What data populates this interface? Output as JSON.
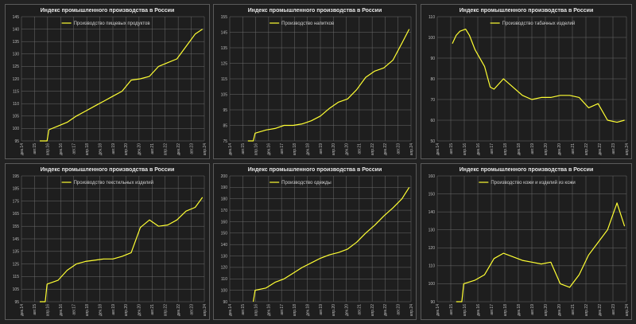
{
  "chart_data": [
    {
      "type": "line",
      "title": "Индекс промышленного производства в России",
      "legend": "Производство пищевых продуктов",
      "legend_position": "top-left",
      "grid": true,
      "color": "#ffff33",
      "ylim": [
        95,
        145
      ],
      "yticks": [
        95,
        100,
        105,
        110,
        115,
        120,
        125,
        130,
        135,
        140,
        145
      ],
      "xticks": [
        "дек.14",
        "авг.15",
        "апр.16",
        "дек.16",
        "авг.17",
        "апр.18",
        "дек.18",
        "авг.19",
        "апр.20",
        "дек.20",
        "авг.21",
        "апр.22",
        "дек.22",
        "авг.23",
        "апр.24"
      ],
      "points": [
        [
          0.1,
          95
        ],
        [
          0.14,
          95
        ],
        [
          0.15,
          99.5
        ],
        [
          0.2,
          101
        ],
        [
          0.25,
          102.5
        ],
        [
          0.3,
          105
        ],
        [
          0.35,
          107
        ],
        [
          0.4,
          109
        ],
        [
          0.45,
          111
        ],
        [
          0.5,
          113
        ],
        [
          0.55,
          115
        ],
        [
          0.6,
          119.5
        ],
        [
          0.65,
          120
        ],
        [
          0.7,
          121
        ],
        [
          0.75,
          125
        ],
        [
          0.8,
          126.5
        ],
        [
          0.85,
          128
        ],
        [
          0.9,
          133
        ],
        [
          0.95,
          138
        ],
        [
          0.99,
          140
        ]
      ]
    },
    {
      "type": "line",
      "title": "Индекс промышленного производства в России",
      "legend": "Производство напитков",
      "legend_position": "top-left",
      "grid": true,
      "color": "#ffff33",
      "ylim": [
        75,
        155
      ],
      "yticks": [
        75,
        85,
        95,
        105,
        115,
        125,
        135,
        145,
        155
      ],
      "xticks": [
        "дек.14",
        "авг.15",
        "апр.16",
        "дек.16",
        "авг.17",
        "апр.18",
        "дек.18",
        "авг.19",
        "апр.20",
        "дек.20",
        "авг.21",
        "апр.22",
        "дек.22",
        "авг.23",
        "апр.24"
      ],
      "points": [
        [
          0.1,
          75
        ],
        [
          0.13,
          75
        ],
        [
          0.14,
          80
        ],
        [
          0.2,
          82
        ],
        [
          0.25,
          83
        ],
        [
          0.3,
          85
        ],
        [
          0.35,
          85
        ],
        [
          0.4,
          86
        ],
        [
          0.45,
          88
        ],
        [
          0.5,
          91
        ],
        [
          0.55,
          96
        ],
        [
          0.6,
          100
        ],
        [
          0.65,
          102
        ],
        [
          0.7,
          108
        ],
        [
          0.75,
          116
        ],
        [
          0.8,
          120
        ],
        [
          0.85,
          122
        ],
        [
          0.9,
          127
        ],
        [
          0.95,
          138
        ],
        [
          0.99,
          147
        ]
      ]
    },
    {
      "type": "line",
      "title": "Индекс промышленного производства в России",
      "legend": "Производство табачных изделий",
      "legend_position": "top-right",
      "grid": true,
      "color": "#ffff33",
      "ylim": [
        50,
        110
      ],
      "yticks": [
        50,
        60,
        70,
        80,
        90,
        100,
        110
      ],
      "xticks": [
        "дек.14",
        "авг.15",
        "апр.16",
        "дек.16",
        "авг.17",
        "апр.18",
        "дек.18",
        "авг.19",
        "апр.20",
        "дек.20",
        "авг.21",
        "апр.22",
        "дек.22",
        "авг.23",
        "апр.24"
      ],
      "points": [
        [
          0.08,
          97
        ],
        [
          0.1,
          101
        ],
        [
          0.12,
          103
        ],
        [
          0.15,
          104
        ],
        [
          0.17,
          101
        ],
        [
          0.2,
          94
        ],
        [
          0.25,
          86
        ],
        [
          0.28,
          76
        ],
        [
          0.3,
          75
        ],
        [
          0.35,
          80
        ],
        [
          0.4,
          76
        ],
        [
          0.45,
          72
        ],
        [
          0.5,
          70
        ],
        [
          0.55,
          71
        ],
        [
          0.6,
          71
        ],
        [
          0.65,
          72
        ],
        [
          0.7,
          72
        ],
        [
          0.75,
          71
        ],
        [
          0.8,
          66
        ],
        [
          0.85,
          68
        ],
        [
          0.9,
          60
        ],
        [
          0.95,
          59
        ],
        [
          0.99,
          60
        ]
      ]
    },
    {
      "type": "line",
      "title": "Индекс промышленного производства в России",
      "legend": "Производство текстильных изделий",
      "legend_position": "top-left",
      "grid": true,
      "color": "#ffff33",
      "ylim": [
        95,
        195
      ],
      "yticks": [
        95,
        105,
        115,
        125,
        135,
        145,
        155,
        165,
        175,
        185,
        195
      ],
      "xticks": [
        "дек.14",
        "авг.15",
        "апр.16",
        "дек.16",
        "авг.17",
        "апр.18",
        "дек.18",
        "авг.19",
        "апр.20",
        "дек.20",
        "авг.21",
        "апр.22",
        "дек.22",
        "авг.23",
        "апр.24"
      ],
      "points": [
        [
          0.1,
          95
        ],
        [
          0.13,
          95
        ],
        [
          0.14,
          109
        ],
        [
          0.2,
          112
        ],
        [
          0.25,
          120
        ],
        [
          0.3,
          125
        ],
        [
          0.35,
          127
        ],
        [
          0.4,
          128
        ],
        [
          0.45,
          129
        ],
        [
          0.5,
          129
        ],
        [
          0.55,
          131
        ],
        [
          0.6,
          134
        ],
        [
          0.65,
          154
        ],
        [
          0.7,
          160
        ],
        [
          0.75,
          155
        ],
        [
          0.8,
          156
        ],
        [
          0.85,
          160
        ],
        [
          0.9,
          167
        ],
        [
          0.95,
          170
        ],
        [
          0.99,
          178
        ]
      ]
    },
    {
      "type": "line",
      "title": "Индекс промышленного производства в России",
      "legend": "Производство одежды",
      "legend_position": "top-left",
      "grid": true,
      "color": "#ffff33",
      "ylim": [
        90,
        200
      ],
      "yticks": [
        90,
        100,
        110,
        120,
        130,
        140,
        150,
        160,
        170,
        180,
        190,
        200
      ],
      "xticks": [
        "дек.14",
        "авг.15",
        "апр.16",
        "дек.16",
        "авг.17",
        "апр.18",
        "дек.18",
        "авг.19",
        "апр.20",
        "дек.20",
        "авг.21",
        "апр.22",
        "дек.22",
        "авг.23",
        "апр.24"
      ],
      "points": [
        [
          0.13,
          90
        ],
        [
          0.14,
          100
        ],
        [
          0.2,
          102
        ],
        [
          0.25,
          107
        ],
        [
          0.3,
          110
        ],
        [
          0.35,
          115
        ],
        [
          0.4,
          120
        ],
        [
          0.45,
          124
        ],
        [
          0.5,
          128
        ],
        [
          0.55,
          131
        ],
        [
          0.6,
          133
        ],
        [
          0.65,
          136
        ],
        [
          0.7,
          142
        ],
        [
          0.75,
          150
        ],
        [
          0.8,
          157
        ],
        [
          0.85,
          165
        ],
        [
          0.9,
          172
        ],
        [
          0.95,
          180
        ],
        [
          0.99,
          190
        ]
      ]
    },
    {
      "type": "line",
      "title": "Индекс промышленного производства в России",
      "legend": "Производство кожи и изделий из кожи",
      "legend_position": "top-left",
      "grid": true,
      "color": "#ffff33",
      "ylim": [
        90,
        160
      ],
      "yticks": [
        90,
        100,
        110,
        120,
        130,
        140,
        150,
        160
      ],
      "xticks": [
        "дек.14",
        "авг.15",
        "апр.16",
        "дек.16",
        "авг.17",
        "апр.18",
        "дек.18",
        "авг.19",
        "апр.20",
        "дек.20",
        "авг.21",
        "апр.22",
        "дек.22",
        "авг.23",
        "апр.24"
      ],
      "points": [
        [
          0.1,
          90
        ],
        [
          0.13,
          90
        ],
        [
          0.14,
          100
        ],
        [
          0.2,
          102
        ],
        [
          0.25,
          105
        ],
        [
          0.3,
          114
        ],
        [
          0.35,
          117
        ],
        [
          0.4,
          115
        ],
        [
          0.45,
          113
        ],
        [
          0.5,
          112
        ],
        [
          0.55,
          111
        ],
        [
          0.6,
          112
        ],
        [
          0.65,
          100
        ],
        [
          0.7,
          98
        ],
        [
          0.75,
          105
        ],
        [
          0.8,
          116
        ],
        [
          0.85,
          123
        ],
        [
          0.9,
          130
        ],
        [
          0.95,
          145
        ],
        [
          0.99,
          132
        ]
      ]
    }
  ]
}
